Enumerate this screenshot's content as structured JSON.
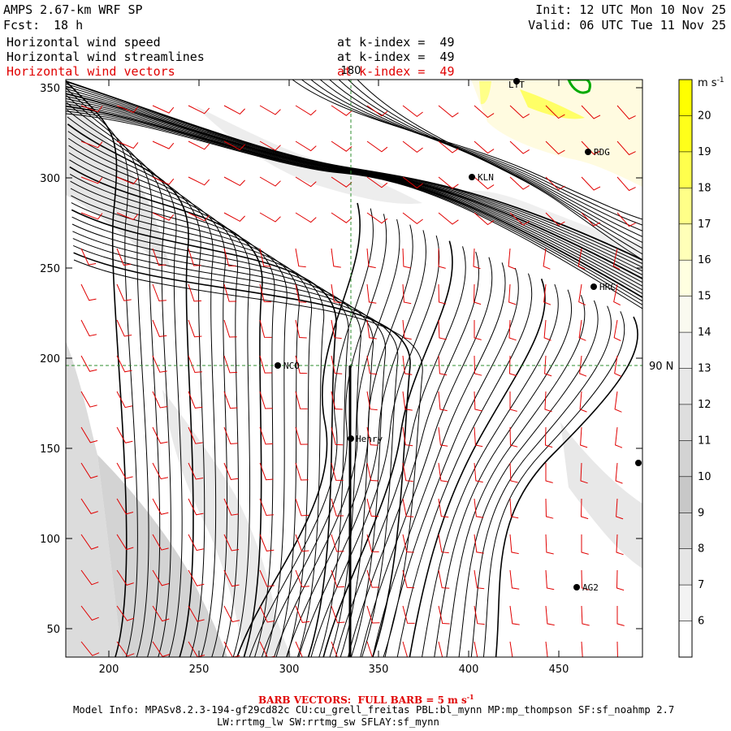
{
  "header": {
    "model": "AMPS 2.67-km WRF SP",
    "forecast_label": "Fcst:",
    "forecast_value": "18 h",
    "init": "Init: 12 UTC Mon 10 Nov 25",
    "valid": "Valid: 06 UTC Tue 11 Nov 25"
  },
  "fields": [
    {
      "name": "Horizontal wind speed",
      "level": "at k-index =  49",
      "color": "#000000"
    },
    {
      "name": "Horizontal wind streamlines",
      "level": "at k-index =  49",
      "color": "#000000"
    },
    {
      "name": "Horizontal wind vectors",
      "level": "at k-index =  49",
      "color": "#e00000"
    }
  ],
  "map": {
    "x_ticks": [
      "200",
      "250",
      "300",
      "350",
      "400",
      "450"
    ],
    "y_ticks": [
      "50",
      "100",
      "150",
      "200",
      "250",
      "300",
      "350"
    ],
    "lon_180_label": "180",
    "lat_90_label": "90 N",
    "stations": [
      {
        "id": "LYT",
        "label": "LYT"
      },
      {
        "id": "RDG",
        "label": "RDG"
      },
      {
        "id": "KLN",
        "label": "KLN"
      },
      {
        "id": "HRC",
        "label": "HRC"
      },
      {
        "id": "NCO",
        "label": "NCO"
      },
      {
        "id": "HENRY",
        "label": "Henry"
      },
      {
        "id": "EDGE",
        "label": ""
      },
      {
        "id": "AG2",
        "label": "AG2"
      }
    ]
  },
  "colorbar": {
    "unit": "m s",
    "unit_exp": "-1",
    "labels": [
      "20",
      "19",
      "18",
      "17",
      "16",
      "15",
      "14",
      "13",
      "12",
      "11",
      "10",
      "9",
      "8",
      "7",
      "6"
    ],
    "colors": [
      "#ffff00",
      "#ffff1a",
      "#ffff4d",
      "#ffff88",
      "#ffffb8",
      "#ffffe0",
      "#fafaf0",
      "#f0f0f0",
      "#e8e8e8",
      "#dedede",
      "#d3d3d3",
      "#c8c8c8",
      "#d6d6d6",
      "#e6e6e6",
      "#f3f3f3",
      "#ffffff"
    ]
  },
  "footer": {
    "barb_note": "BARB VECTORS:  FULL BARB = 5 m s",
    "barb_exp": "-1",
    "model_info": "Model Info: MPASv8.2.3-194-gf29cd82c CU:cu_grell_freitas PBL:bl_mynn MP:mp_thompson SF:sf_noahmp 2.7",
    "model_info2": "LW:rrtmg_lw SW:rrtmg_sw SFLAY:sf_mynn"
  }
}
